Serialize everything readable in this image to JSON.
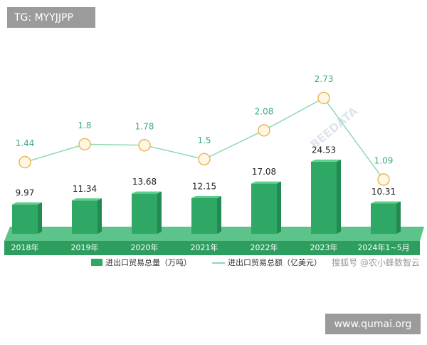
{
  "chart_data": {
    "type": "bar",
    "categories": [
      "2018年",
      "2019年",
      "2020年",
      "2021年",
      "2022年",
      "2023年",
      "2024年1~5月"
    ],
    "series": [
      {
        "name": "进出口贸易总量（万吨）",
        "type": "bar",
        "color": "#2fa866",
        "values": [
          9.97,
          11.34,
          13.68,
          12.15,
          17.08,
          24.53,
          10.31
        ]
      },
      {
        "name": "进出口贸易总额（亿美元）",
        "type": "line",
        "axis": "y2",
        "color": "#8fd9b0",
        "marker_color": "#e9b85c",
        "values": [
          1.44,
          1.8,
          1.78,
          1.5,
          2.08,
          2.73,
          1.09
        ]
      }
    ],
    "annotations": [
      "TG: MYYJJPP",
      "www.qumai.org",
      "搜狐号 @农小蜂数智云",
      "BEEDATA"
    ]
  }
}
